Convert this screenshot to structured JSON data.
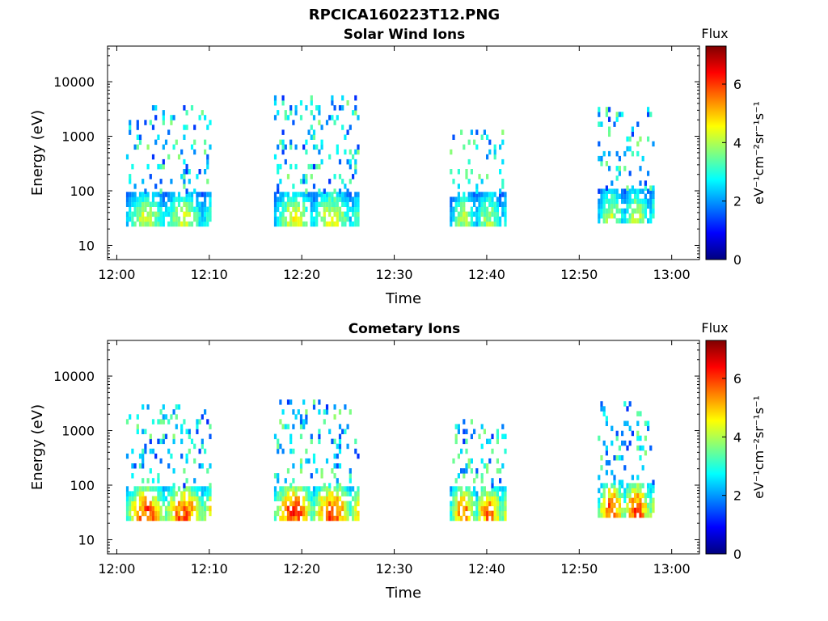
{
  "figure": {
    "title": "RPCICA160223T12.PNG"
  },
  "colormap": [
    "#00007f",
    "#0000ff",
    "#0080ff",
    "#00ffff",
    "#80ff80",
    "#ffff00",
    "#ff8000",
    "#ff0000",
    "#7f0000"
  ],
  "chart_data": [
    {
      "type": "heatmap",
      "title": "Solar Wind Ions",
      "xlabel": "Time",
      "ylabel": "Energy (eV)",
      "x_unit": "minutes after 12:00",
      "xlim": [
        "11:59",
        "13:03"
      ],
      "x_ticks": [
        "12:00",
        "12:10",
        "12:20",
        "12:30",
        "12:40",
        "12:50",
        "13:00"
      ],
      "y_scale": "log",
      "ylim": [
        5.5,
        45000
      ],
      "y_ticks": [
        "10",
        "100",
        "1000",
        "10000"
      ],
      "colorbar": {
        "label_top": "Flux",
        "label": "eV⁻¹cm⁻²sr⁻¹s⁻¹",
        "range": [
          0,
          7.3
        ],
        "ticks": [
          "0",
          "2",
          "4",
          "6"
        ]
      },
      "bursts": [
        {
          "start": "12:01",
          "end": "12:10",
          "peak_flux": 4.6,
          "main_energy_eV": 35,
          "upper_energy_eV": 3000
        },
        {
          "start": "12:17",
          "end": "12:26",
          "peak_flux": 4.8,
          "main_energy_eV": 35,
          "upper_energy_eV": 5000
        },
        {
          "start": "12:36",
          "end": "12:42",
          "peak_flux": 4.3,
          "main_energy_eV": 35,
          "upper_energy_eV": 1200
        },
        {
          "start": "12:52",
          "end": "12:58",
          "peak_flux": 4.5,
          "main_energy_eV": 40,
          "upper_energy_eV": 3000
        }
      ]
    },
    {
      "type": "heatmap",
      "title": "Cometary Ions",
      "xlabel": "Time",
      "ylabel": "Energy (eV)",
      "x_unit": "minutes after 12:00",
      "xlim": [
        "11:59",
        "13:03"
      ],
      "x_ticks": [
        "12:00",
        "12:10",
        "12:20",
        "12:30",
        "12:40",
        "12:50",
        "13:00"
      ],
      "y_scale": "log",
      "ylim": [
        5.5,
        45000
      ],
      "y_ticks": [
        "10",
        "100",
        "1000",
        "10000"
      ],
      "colorbar": {
        "label_top": "Flux",
        "label": "eV⁻¹cm⁻²sr⁻¹s⁻¹",
        "range": [
          0,
          7.3
        ],
        "ticks": [
          "0",
          "2",
          "4",
          "6"
        ]
      },
      "bursts": [
        {
          "start": "12:01",
          "end": "12:10",
          "peak_flux": 6.4,
          "main_energy_eV": 35,
          "upper_energy_eV": 2800
        },
        {
          "start": "12:17",
          "end": "12:26",
          "peak_flux": 6.6,
          "main_energy_eV": 35,
          "upper_energy_eV": 3000
        },
        {
          "start": "12:36",
          "end": "12:42",
          "peak_flux": 6.1,
          "main_energy_eV": 35,
          "upper_energy_eV": 1500
        },
        {
          "start": "12:52",
          "end": "12:58",
          "peak_flux": 6.5,
          "main_energy_eV": 40,
          "upper_energy_eV": 2800
        }
      ]
    }
  ]
}
